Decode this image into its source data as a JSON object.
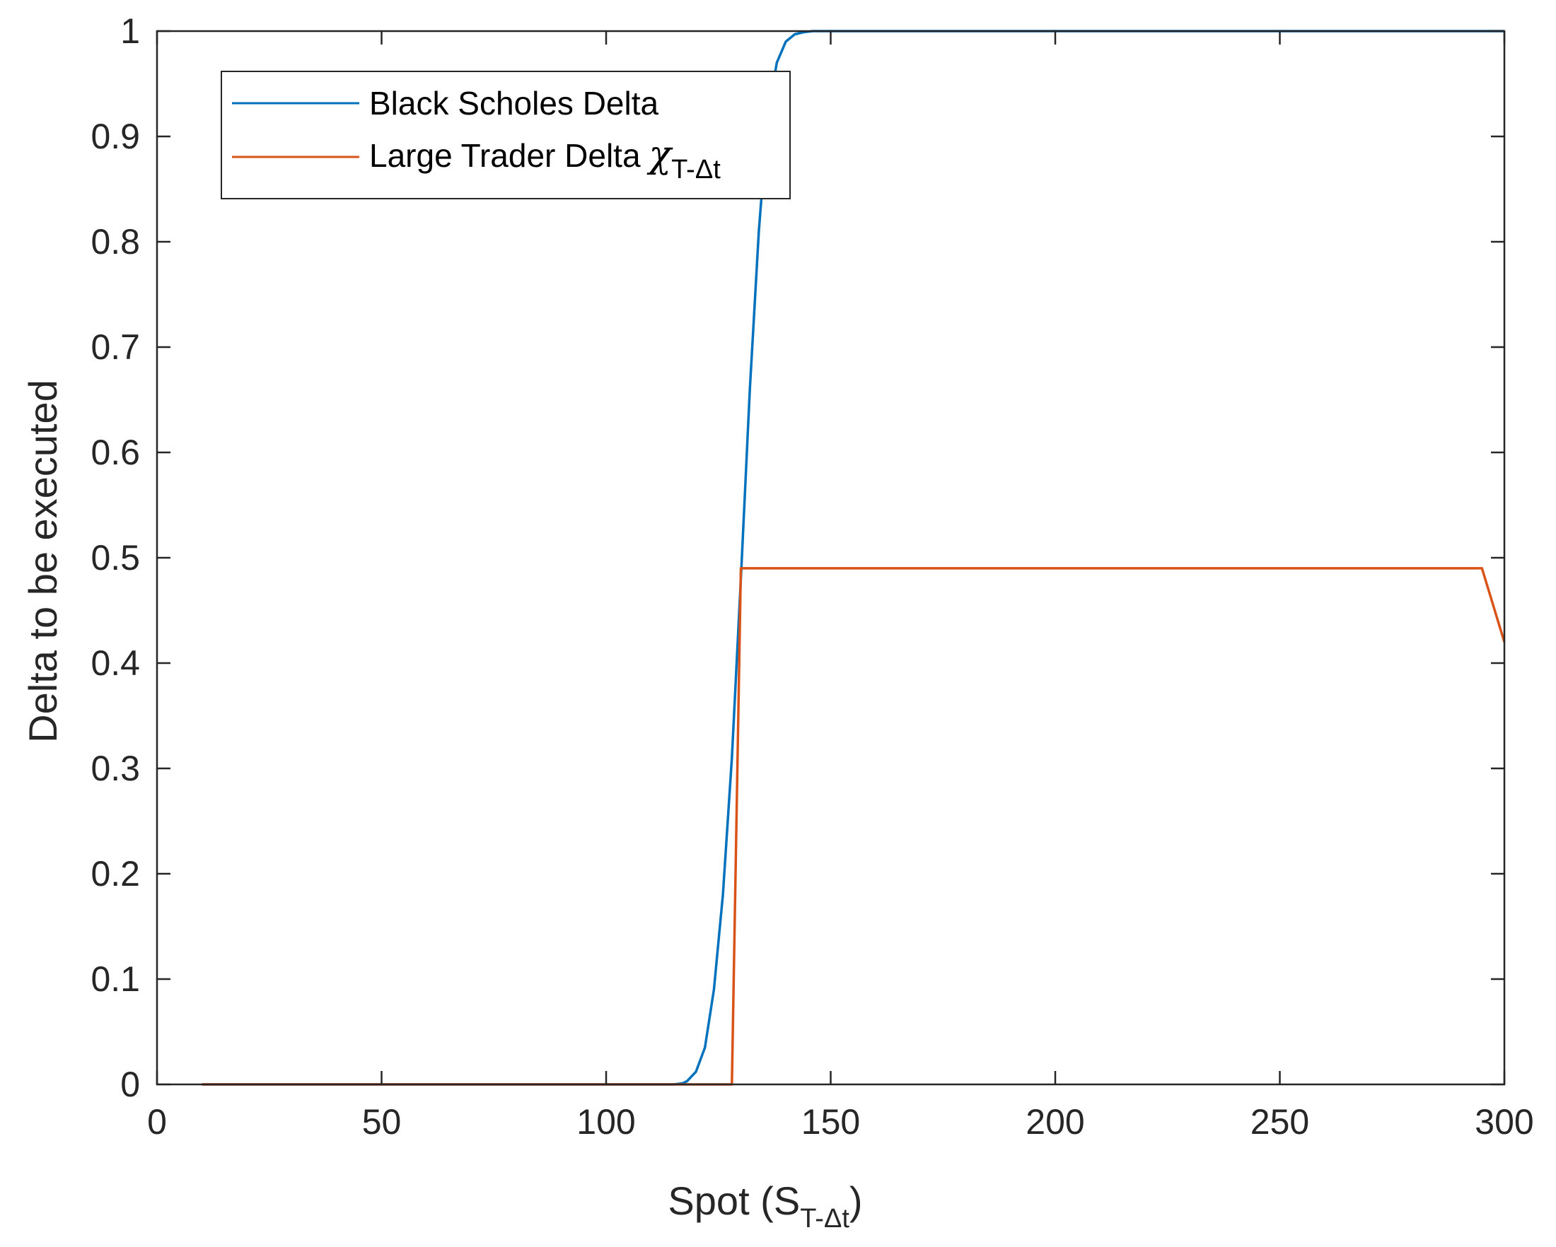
{
  "chart_data": {
    "type": "line",
    "title": "",
    "xlabel": {
      "prefix": "Spot (S",
      "subscript": "T-Δt",
      "suffix": ")"
    },
    "ylabel": "Delta to be executed",
    "xlim": [
      0,
      300
    ],
    "ylim": [
      0,
      1
    ],
    "xticks": [
      0,
      50,
      100,
      150,
      200,
      250,
      300
    ],
    "yticks": [
      0,
      0.1,
      0.2,
      0.3,
      0.4,
      0.5,
      0.6,
      0.7,
      0.8,
      0.9,
      1
    ],
    "grid": false,
    "legend_position": "top-left",
    "series": [
      {
        "name": "Black Scholes Delta",
        "color": "#0072BD",
        "x": [
          10,
          100,
          115,
          117,
          118,
          120,
          122,
          124,
          126,
          128,
          130,
          132,
          134,
          136,
          138,
          140,
          142,
          144,
          146,
          150,
          200,
          250,
          300
        ],
        "y": [
          0,
          0,
          0,
          0.001,
          0.003,
          0.012,
          0.035,
          0.09,
          0.18,
          0.31,
          0.48,
          0.66,
          0.81,
          0.92,
          0.97,
          0.99,
          0.997,
          0.999,
          1,
          1,
          1,
          1,
          1
        ]
      },
      {
        "name": "Large Trader Delta",
        "name_symbol": "χ",
        "name_subscript": "T-Δt",
        "color": "#D95319",
        "x": [
          10,
          128,
          130,
          130.5,
          295,
          300
        ],
        "y": [
          0,
          0,
          0.49,
          0.49,
          0.49,
          0.42
        ]
      }
    ]
  }
}
